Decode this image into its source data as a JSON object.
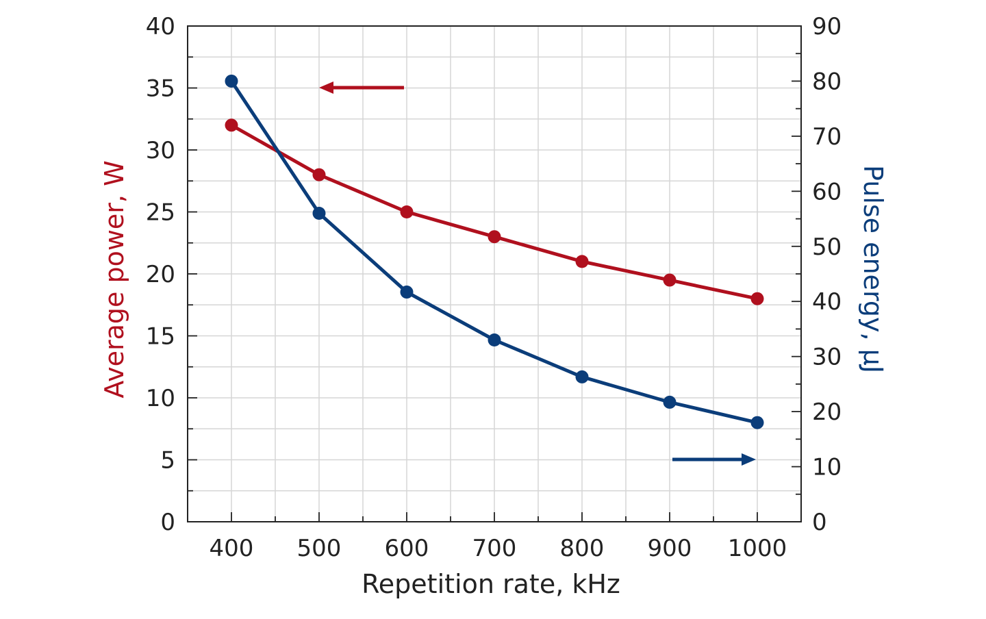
{
  "chart_data": {
    "type": "line",
    "xlabel": "Repetition rate, kHz",
    "ylabel_left": "Average power, W",
    "ylabel_right": "Pulse energy, μJ",
    "x": [
      400,
      500,
      600,
      700,
      800,
      900,
      1000
    ],
    "xlim": [
      350,
      1050
    ],
    "ylim_left": [
      0,
      40
    ],
    "ylim_right": [
      0,
      90
    ],
    "x_ticks": [
      "400",
      "500",
      "600",
      "700",
      "800",
      "900",
      "1000"
    ],
    "y_ticks_left": [
      "0",
      "5",
      "10",
      "15",
      "20",
      "25",
      "30",
      "35",
      "40"
    ],
    "y_ticks_right": [
      "0",
      "10",
      "20",
      "30",
      "40",
      "50",
      "60",
      "70",
      "80",
      "90"
    ],
    "grid": true,
    "series": [
      {
        "axis": "left",
        "color": "#b0101e",
        "values": [
          32,
          28,
          25,
          23,
          21,
          19.5,
          18
        ]
      },
      {
        "axis": "right",
        "color": "#0b3d7a",
        "values": [
          80,
          56,
          41.7,
          33,
          26.3,
          21.7,
          18
        ]
      }
    ],
    "annotations": [
      {
        "type": "arrow",
        "points_to": "left",
        "color": "#b0101e"
      },
      {
        "type": "arrow",
        "points_to": "right",
        "color": "#0b3d7a"
      }
    ]
  }
}
